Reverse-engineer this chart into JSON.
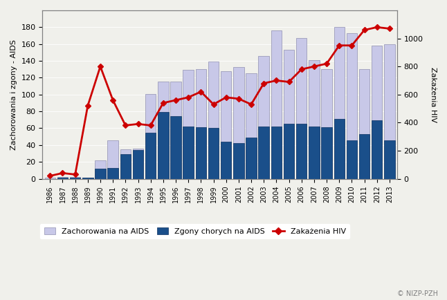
{
  "years": [
    1986,
    1987,
    1988,
    1989,
    1990,
    1991,
    1992,
    1993,
    1994,
    1995,
    1996,
    1997,
    1998,
    1999,
    2000,
    2001,
    2002,
    2003,
    2004,
    2005,
    2006,
    2007,
    2008,
    2009,
    2010,
    2011,
    2012,
    2013
  ],
  "aids_cases": [
    1,
    2,
    2,
    1,
    22,
    46,
    35,
    36,
    101,
    115,
    115,
    129,
    130,
    139,
    128,
    133,
    125,
    146,
    176,
    153,
    167,
    141,
    130,
    180,
    173,
    130,
    158,
    160
  ],
  "aids_deaths": [
    0,
    1,
    1,
    1,
    12,
    13,
    29,
    34,
    55,
    79,
    74,
    62,
    61,
    60,
    44,
    42,
    49,
    62,
    62,
    65,
    65,
    62,
    61,
    71,
    46,
    53,
    69,
    46
  ],
  "hiv_infections": [
    20,
    40,
    30,
    520,
    800,
    560,
    380,
    390,
    380,
    540,
    560,
    580,
    620,
    530,
    580,
    570,
    530,
    680,
    700,
    690,
    780,
    800,
    820,
    950,
    950,
    1060,
    1080,
    1070
  ],
  "ylabel_left": "Zachorowania i zgony - AIDS",
  "ylabel_right": "Zakażenia HIV",
  "bar_color_light": "#c8c8e8",
  "bar_color_dark": "#1a4f8a",
  "line_color": "#cc0000",
  "ylim_left": [
    0,
    200
  ],
  "ylim_right": [
    0,
    1200
  ],
  "yticks_left": [
    0,
    20,
    40,
    60,
    80,
    100,
    120,
    140,
    160,
    180
  ],
  "yticks_right": [
    0,
    200,
    400,
    600,
    800,
    1000
  ],
  "legend_labels": [
    "Zachorowania na AIDS",
    "Zgony chorych na AIDS",
    "Zakażenia HIV"
  ],
  "watermark": "© NIZP-PZH",
  "background_color": "#f0f0eb"
}
